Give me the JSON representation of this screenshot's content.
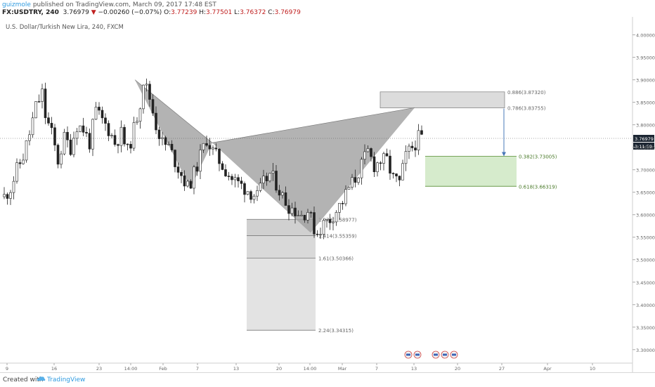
{
  "header": {
    "username": "guizmole",
    "published_text": "published on TradingView.com, March 09, 2017 17:48 EST",
    "symbol": "FX:USDTRY, 240",
    "last": "3.76979",
    "change": "−0.00260 (−0.07%)",
    "open_label": "O:",
    "open": "3.77239",
    "high_label": "H:",
    "high": "3.77501",
    "low_label": "L:",
    "low": "3.76372",
    "close_label": "C:",
    "close": "3.76979"
  },
  "footer": {
    "created_with": "Created with",
    "brand": "TradingView"
  },
  "colors": {
    "candle": "#222222",
    "pattern_fill": "#9e9e9e",
    "target_box": "#d6ebcc",
    "target_border": "#6a9a4a",
    "target_text": "#4a7a2a",
    "gray_box": "#dcdcdc",
    "arrow": "#4a78b8",
    "price_tag": "#1d2733"
  },
  "chart_data": {
    "type": "candlestick",
    "title": "U.S. Dollar/Turkish New Lira, 240, FXCM",
    "ylim": [
      3.27,
      4.04
    ],
    "y_ticks": [
      "4.00000",
      "3.95000",
      "3.90000",
      "3.85000",
      "3.80000",
      "3.75000",
      "3.70000",
      "3.65000",
      "3.60000",
      "3.55000",
      "3.50000",
      "3.45000",
      "3.40000",
      "3.35000",
      "3.30000"
    ],
    "x_ticks": [
      "9",
      "16",
      "23",
      "14:00",
      "Feb",
      "7",
      "13",
      "20",
      "14:00",
      "Mar",
      "7",
      "13",
      "20",
      "27",
      "Apr",
      "10"
    ],
    "last_price": "3.76979",
    "countdown": "3:11:59",
    "price_path": [
      [
        0,
        3.64
      ],
      [
        2,
        3.66
      ],
      [
        4,
        3.7
      ],
      [
        6,
        3.73
      ],
      [
        8,
        3.78
      ],
      [
        10,
        3.84
      ],
      [
        12,
        3.87
      ],
      [
        13,
        3.82
      ],
      [
        15,
        3.78
      ],
      [
        17,
        3.72
      ],
      [
        19,
        3.77
      ],
      [
        21,
        3.75
      ],
      [
        23,
        3.8
      ],
      [
        25,
        3.79
      ],
      [
        27,
        3.76
      ],
      [
        29,
        3.83
      ],
      [
        31,
        3.81
      ],
      [
        33,
        3.79
      ],
      [
        35,
        3.76
      ],
      [
        37,
        3.78
      ],
      [
        39,
        3.74
      ],
      [
        41,
        3.79
      ],
      [
        43,
        3.85
      ],
      [
        44,
        3.9
      ],
      [
        46,
        3.86
      ],
      [
        48,
        3.8
      ],
      [
        50,
        3.76
      ],
      [
        52,
        3.75
      ],
      [
        54,
        3.72
      ],
      [
        56,
        3.69
      ],
      [
        58,
        3.66
      ],
      [
        60,
        3.69
      ],
      [
        62,
        3.73
      ],
      [
        64,
        3.77
      ],
      [
        66,
        3.74
      ],
      [
        68,
        3.72
      ],
      [
        70,
        3.7
      ],
      [
        72,
        3.68
      ],
      [
        74,
        3.67
      ],
      [
        76,
        3.66
      ],
      [
        78,
        3.65
      ],
      [
        80,
        3.64
      ],
      [
        82,
        3.67
      ],
      [
        84,
        3.69
      ],
      [
        86,
        3.67
      ],
      [
        88,
        3.64
      ],
      [
        90,
        3.62
      ],
      [
        92,
        3.61
      ],
      [
        94,
        3.6
      ],
      [
        96,
        3.61
      ],
      [
        98,
        3.57
      ],
      [
        99,
        3.56
      ],
      [
        101,
        3.58
      ],
      [
        103,
        3.59
      ],
      [
        105,
        3.61
      ],
      [
        107,
        3.63
      ],
      [
        109,
        3.66
      ],
      [
        111,
        3.68
      ],
      [
        113,
        3.71
      ],
      [
        115,
        3.74
      ],
      [
        117,
        3.71
      ],
      [
        119,
        3.72
      ],
      [
        121,
        3.72
      ],
      [
        123,
        3.68
      ],
      [
        125,
        3.67
      ],
      [
        127,
        3.73
      ],
      [
        129,
        3.75
      ],
      [
        131,
        3.77
      ],
      [
        132,
        3.76979
      ]
    ],
    "pattern_points": {
      "X": 3.9,
      "A": 3.66,
      "B": 3.76,
      "C": 3.56,
      "D": 3.838
    },
    "fib_levels": [
      {
        "ratio": "0.886",
        "value": "3.87320",
        "group": "upper"
      },
      {
        "ratio": "0.786",
        "value": "3.83755",
        "group": "upper"
      },
      {
        "ratio": "0.382",
        "value": "3.73005",
        "group": "target"
      },
      {
        "ratio": "0.618",
        "value": "3.66319",
        "group": "target"
      },
      {
        "ratio": "1.272",
        "value": "3.58977",
        "group": "lower"
      },
      {
        "ratio": "1.414",
        "value": "3.55359",
        "group": "lower"
      },
      {
        "ratio": "1.61",
        "value": "3.50366",
        "group": "lower"
      },
      {
        "ratio": "2.24",
        "value": "3.34315",
        "group": "lower"
      }
    ]
  }
}
